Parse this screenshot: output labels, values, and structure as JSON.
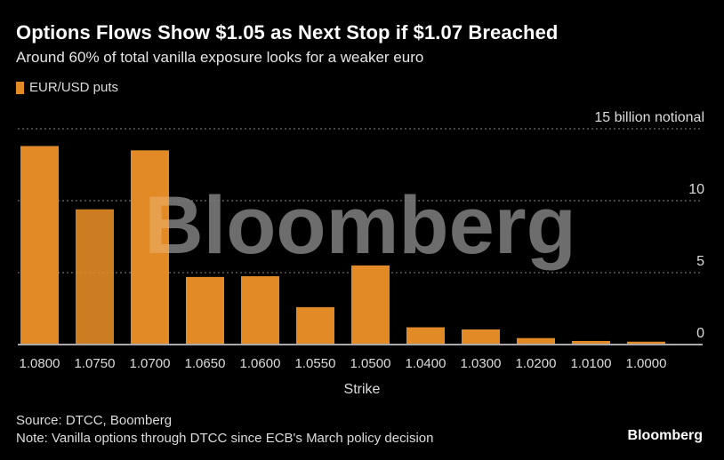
{
  "header": {
    "title": "Options Flows Show $1.05 as Next Stop if $1.07 Breached",
    "subtitle": "Around 60% of total vanilla exposure looks for a weaker euro"
  },
  "footer": {
    "source": "Source: DTCC, Boomberg",
    "note": "Note: Vanilla options through DTCC since ECB's March policy decision",
    "brand": "Bloomberg"
  },
  "watermark": "Bloomberg",
  "colors": {
    "bar": "#e28b26",
    "background": "#000000",
    "grid": "#888888",
    "axis": "#aaaaaa",
    "watermark": "#5a5a5a"
  },
  "chart_data": {
    "type": "bar",
    "title": "Options Flows Show $1.05 as Next Stop if $1.07 Breached",
    "subtitle": "Around 60% of total vanilla exposure looks for a weaker euro",
    "xlabel": "Strike",
    "ylabel": "15 billion notional",
    "ylim": [
      0,
      15
    ],
    "yticks": [
      0,
      5,
      10,
      15
    ],
    "ytick_labels": [
      "0",
      "5",
      "10",
      "15 billion notional"
    ],
    "grid": true,
    "legend": {
      "position": "top-left",
      "entries": [
        "EUR/USD puts"
      ]
    },
    "categories": [
      "1.0800",
      "1.0750",
      "1.0700",
      "1.0650",
      "1.0600",
      "1.0550",
      "1.0500",
      "1.0400",
      "1.0300",
      "1.0200",
      "1.0100",
      "1.0000"
    ],
    "series": [
      {
        "name": "EUR/USD puts",
        "values": [
          13.8,
          9.4,
          13.5,
          4.7,
          4.75,
          2.6,
          5.5,
          1.2,
          1.05,
          0.45,
          0.25,
          0.2
        ]
      }
    ]
  }
}
